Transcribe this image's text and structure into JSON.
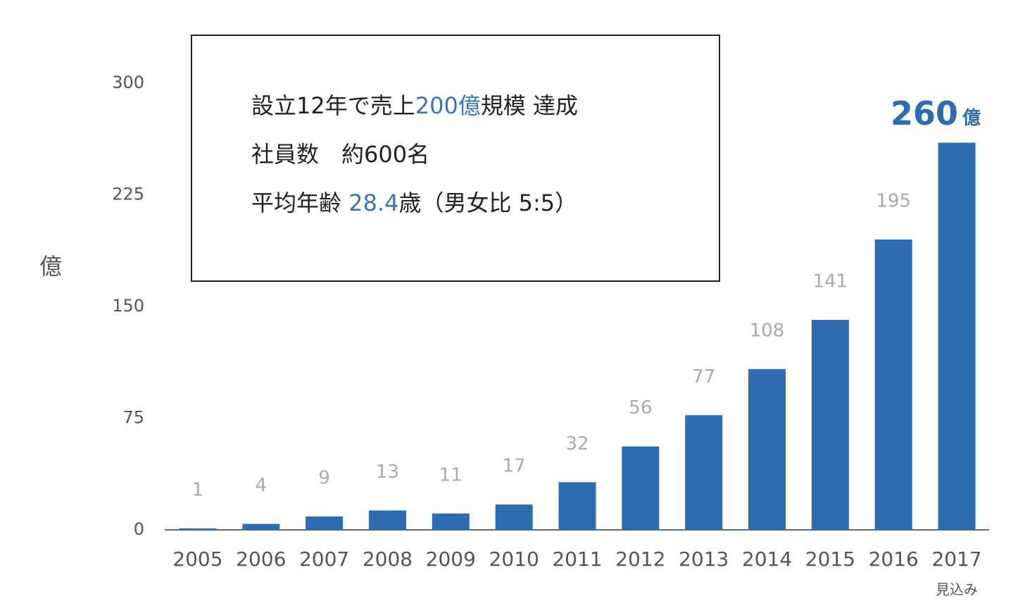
{
  "chart_data": {
    "type": "bar",
    "ylabel": "億",
    "categories": [
      "2005",
      "2006",
      "2007",
      "2008",
      "2009",
      "2010",
      "2011",
      "2012",
      "2013",
      "2014",
      "2015",
      "2016",
      "2017"
    ],
    "values": [
      1,
      4,
      9,
      13,
      11,
      17,
      32,
      56,
      77,
      108,
      141,
      195,
      260
    ],
    "color": "#2c6cb0",
    "ylim": [
      0,
      300
    ],
    "yticks": [
      0,
      75,
      150,
      225,
      300
    ],
    "grid": false,
    "note": "見込み",
    "annotation_lines": [
      [
        "設立12年で売上",
        "200億",
        "規模 達成"
      ],
      [
        "社員数　約600名"
      ],
      [
        "平均年齢 ",
        "28.4",
        "歳（男女比 5:5）"
      ]
    ]
  }
}
